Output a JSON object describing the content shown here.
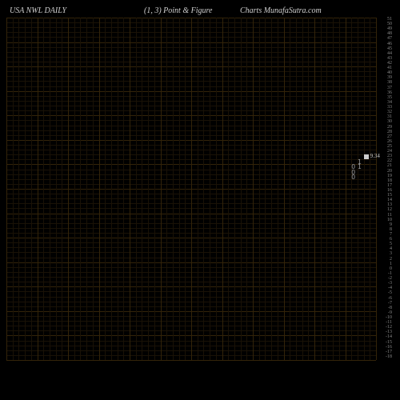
{
  "header": {
    "ticker": "USA NWL  DAILY",
    "params": "(1,  3) Point & Figure",
    "source": "Charts MunafaSutra.com"
  },
  "colors": {
    "background": "#000000",
    "grid_minor": "#1a1206",
    "grid_major": "#332409",
    "text_header": "#d0d0d0",
    "text_axis": "#888888",
    "marker_fill": "#cccccc",
    "data_o": "#999999"
  },
  "grid": {
    "rows": 70,
    "cols": 60,
    "major_every": 5
  },
  "y_axis": {
    "labels": [
      {
        "v": "51",
        "pos": 0
      },
      {
        "v": "50",
        "pos": 1
      },
      {
        "v": "49",
        "pos": 2
      },
      {
        "v": "48",
        "pos": 3
      },
      {
        "v": "47",
        "pos": 4
      },
      {
        "v": "46",
        "pos": 5
      },
      {
        "v": "45",
        "pos": 6
      },
      {
        "v": "44",
        "pos": 7
      },
      {
        "v": "43",
        "pos": 8
      },
      {
        "v": "42",
        "pos": 9
      },
      {
        "v": "41",
        "pos": 10
      },
      {
        "v": "40",
        "pos": 11
      },
      {
        "v": "39",
        "pos": 12
      },
      {
        "v": "38",
        "pos": 13
      },
      {
        "v": "37",
        "pos": 14
      },
      {
        "v": "36",
        "pos": 15
      },
      {
        "v": "35",
        "pos": 16
      },
      {
        "v": "34",
        "pos": 17
      },
      {
        "v": "33",
        "pos": 18
      },
      {
        "v": "32",
        "pos": 19
      },
      {
        "v": "31",
        "pos": 20
      },
      {
        "v": "30",
        "pos": 21
      },
      {
        "v": "29",
        "pos": 22
      },
      {
        "v": "28",
        "pos": 23
      },
      {
        "v": "27",
        "pos": 24
      },
      {
        "v": "26",
        "pos": 25
      },
      {
        "v": "25",
        "pos": 26
      },
      {
        "v": "24",
        "pos": 27
      },
      {
        "v": "23",
        "pos": 28
      },
      {
        "v": "22",
        "pos": 29
      },
      {
        "v": "21",
        "pos": 30
      },
      {
        "v": "20",
        "pos": 31
      },
      {
        "v": "19",
        "pos": 32
      },
      {
        "v": "18",
        "pos": 33
      },
      {
        "v": "17",
        "pos": 34
      },
      {
        "v": "16",
        "pos": 35
      },
      {
        "v": "15",
        "pos": 36
      },
      {
        "v": "14",
        "pos": 37
      },
      {
        "v": "13",
        "pos": 38
      },
      {
        "v": "12",
        "pos": 39
      },
      {
        "v": "11",
        "pos": 40
      },
      {
        "v": "10",
        "pos": 41
      },
      {
        "v": "9",
        "pos": 42
      },
      {
        "v": "8",
        "pos": 43
      },
      {
        "v": "7",
        "pos": 44
      },
      {
        "v": "6",
        "pos": 45
      },
      {
        "v": "5",
        "pos": 46
      },
      {
        "v": "4",
        "pos": 47
      },
      {
        "v": "3",
        "pos": 48
      },
      {
        "v": "2",
        "pos": 49
      },
      {
        "v": "1",
        "pos": 50
      },
      {
        "v": "0",
        "pos": 51
      },
      {
        "v": "-1",
        "pos": 52
      },
      {
        "v": "-2",
        "pos": 53
      },
      {
        "v": "-3",
        "pos": 54
      },
      {
        "v": "-4",
        "pos": 55
      },
      {
        "v": "-5",
        "pos": 56
      },
      {
        "v": "-6",
        "pos": 57
      },
      {
        "v": "-7",
        "pos": 58
      },
      {
        "v": "-8",
        "pos": 59
      },
      {
        "v": "-9",
        "pos": 60
      },
      {
        "v": "-10",
        "pos": 61
      },
      {
        "v": "-11",
        "pos": 62
      },
      {
        "v": "-12",
        "pos": 63
      },
      {
        "v": "-13",
        "pos": 64
      },
      {
        "v": "-14",
        "pos": 65
      },
      {
        "v": "-15",
        "pos": 66
      },
      {
        "v": "-16",
        "pos": 67
      },
      {
        "v": "-17",
        "pos": 68
      },
      {
        "v": "-18",
        "pos": 69
      }
    ]
  },
  "marker": {
    "label": "9.34",
    "row": 28,
    "col": 58
  },
  "data_points": [
    {
      "symbol": "1",
      "row": 29,
      "col": 57
    },
    {
      "symbol": "1",
      "row": 30,
      "col": 57
    },
    {
      "symbol": "O",
      "row": 30,
      "col": 56
    },
    {
      "symbol": "O",
      "row": 31,
      "col": 56
    },
    {
      "symbol": "O",
      "row": 32,
      "col": 56
    }
  ]
}
